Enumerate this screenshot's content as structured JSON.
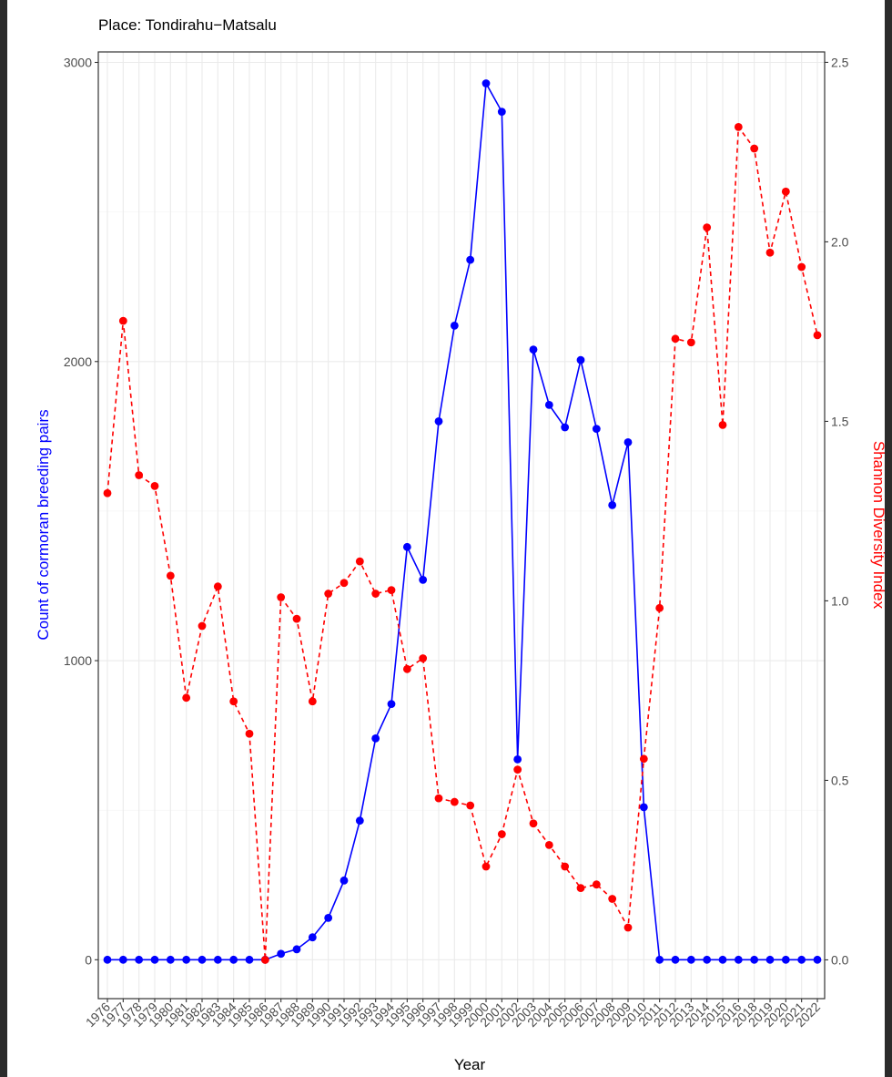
{
  "chart_data": {
    "type": "line",
    "title": "Place: Tondirahu−Matsalu",
    "xlabel": "Year",
    "ylabel_left": "Count of cormoran breeding pairs",
    "ylabel_right": "Shannon Diversity Index",
    "x": [
      "1976",
      "1977",
      "1978",
      "1979",
      "1980",
      "1981",
      "1982",
      "1983",
      "1984",
      "1985",
      "1986",
      "1987",
      "1988",
      "1989",
      "1990",
      "1991",
      "1992",
      "1993",
      "1994",
      "1995",
      "1996",
      "1997",
      "1998",
      "1999",
      "2000",
      "2001",
      "2002",
      "2003",
      "2004",
      "2005",
      "2006",
      "2007",
      "2008",
      "2009",
      "2010",
      "2011",
      "2012",
      "2013",
      "2014",
      "2015",
      "2016",
      "2018",
      "2019",
      "2020",
      "2021",
      "2022"
    ],
    "ylim_left": [
      -130,
      3035
    ],
    "ylim_right": [
      -0.108,
      2.529
    ],
    "yticks_left": [
      0,
      1000,
      2000,
      3000
    ],
    "yticks_right": [
      0.0,
      0.5,
      1.0,
      1.5,
      2.0,
      2.5
    ],
    "grid": true,
    "series": [
      {
        "axis": "left",
        "style": "solid",
        "color": "#0000ff",
        "values": [
          0,
          0,
          0,
          0,
          0,
          0,
          0,
          0,
          0,
          0,
          0,
          20,
          35,
          75,
          140,
          265,
          465,
          740,
          855,
          1380,
          1270,
          1800,
          2120,
          2340,
          2930,
          2835,
          670,
          2040,
          1855,
          1780,
          2005,
          1775,
          1520,
          1730,
          510,
          0,
          0,
          0,
          0,
          0,
          0,
          0,
          0,
          0,
          0,
          0
        ]
      },
      {
        "axis": "right",
        "style": "dashed",
        "color": "#ff0000",
        "values": [
          1.3,
          1.78,
          1.35,
          1.32,
          1.07,
          0.73,
          0.93,
          1.04,
          0.72,
          0.63,
          0.0,
          1.01,
          0.95,
          0.72,
          1.02,
          1.05,
          1.11,
          1.02,
          1.03,
          0.81,
          0.84,
          0.45,
          0.44,
          0.43,
          0.26,
          0.35,
          0.53,
          0.38,
          0.32,
          0.26,
          0.2,
          0.21,
          0.17,
          0.09,
          0.56,
          0.98,
          1.73,
          1.72,
          2.04,
          1.49,
          2.32,
          2.26,
          1.97,
          2.14,
          1.93,
          1.74
        ]
      }
    ]
  }
}
